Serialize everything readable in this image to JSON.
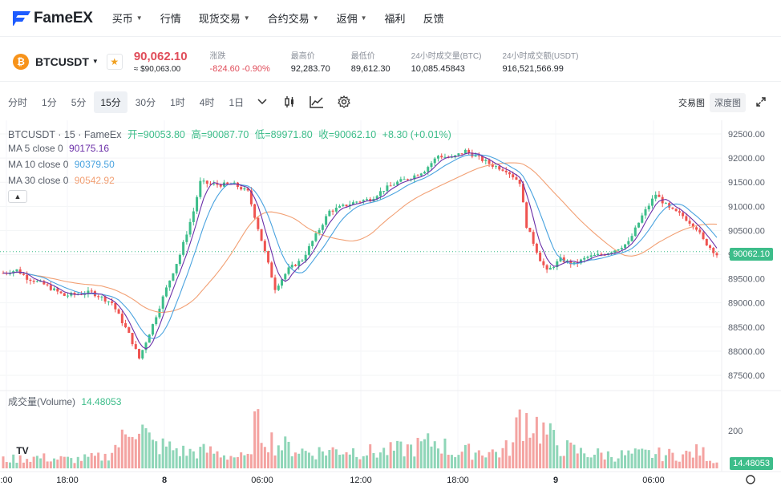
{
  "brand": {
    "name": "FameEX"
  },
  "nav": [
    {
      "label": "买币",
      "dropdown": true
    },
    {
      "label": "行情",
      "dropdown": false
    },
    {
      "label": "现货交易",
      "dropdown": true
    },
    {
      "label": "合约交易",
      "dropdown": true
    },
    {
      "label": "返佣",
      "dropdown": true
    },
    {
      "label": "福利",
      "dropdown": false
    },
    {
      "label": "反馈",
      "dropdown": false
    }
  ],
  "ticker": {
    "coin_icon": "₿",
    "symbol": "BTCUSDT",
    "price": "90,062.10",
    "price_usd": "≈ $90,063.00",
    "change_label": "涨跌",
    "change_value": "-824.60 -0.90%",
    "high_label": "最高价",
    "high_value": "92,283.70",
    "low_label": "最低价",
    "low_value": "89,612.30",
    "vol_btc_label": "24小时成交量(BTC)",
    "vol_btc_value": "10,085.45843",
    "vol_usdt_label": "24小时成交额(USDT)",
    "vol_usdt_value": "916,521,566.99"
  },
  "toolbar": {
    "timeframes": [
      "分时",
      "1分",
      "5分",
      "15分",
      "30分",
      "1时",
      "4时",
      "1日"
    ],
    "active": "15分",
    "views": [
      "交易图",
      "深度图"
    ]
  },
  "legend": {
    "title": "BTCUSDT · 15 · FameEx",
    "open": "开=90053.80",
    "high": "高=90087.70",
    "low": "低=89971.80",
    "close": "收=90062.10",
    "change": "+8.30 (+0.01%)",
    "ma5_label": "MA 5 close 0",
    "ma5_value": "90175.16",
    "ma10_label": "MA 10 close 0",
    "ma10_value": "90379.50",
    "ma30_label": "MA 30 close 0",
    "ma30_value": "90542.92",
    "volume_label": "成交量(Volume)",
    "volume_value": "14.48053"
  },
  "colors": {
    "up": "#3dbd8a",
    "down": "#ef5350",
    "ma5": "#6b2fa8",
    "ma10": "#4aa3df",
    "ma30": "#f2a074",
    "brand": "#1e5cff"
  },
  "chart_data": {
    "type": "candlestick",
    "interval": "15",
    "y_ticks": [
      92500,
      92000,
      91500,
      91000,
      90500,
      90000,
      89500,
      89000,
      88500,
      88000,
      87500
    ],
    "ylim": [
      87300,
      92700
    ],
    "last_price_tag": "90062.10",
    "volume_tick": "200",
    "volume_tag": "14.48053",
    "x_tick_labels": [
      ":00",
      "18:00",
      "8",
      "06:00",
      "12:00",
      "18:00",
      "9",
      "06:00"
    ],
    "anchors": [
      [
        0,
        89620
      ],
      [
        4,
        89680
      ],
      [
        7,
        89520
      ],
      [
        12,
        89380
      ],
      [
        18,
        89150
      ],
      [
        26,
        89220
      ],
      [
        32,
        89000
      ],
      [
        37,
        88350
      ],
      [
        40,
        87850
      ],
      [
        44,
        88550
      ],
      [
        48,
        89300
      ],
      [
        52,
        90000
      ],
      [
        56,
        90900
      ],
      [
        58,
        91500
      ],
      [
        62,
        91450
      ],
      [
        68,
        91450
      ],
      [
        72,
        91300
      ],
      [
        76,
        90300
      ],
      [
        80,
        89300
      ],
      [
        84,
        89700
      ],
      [
        88,
        89900
      ],
      [
        92,
        90400
      ],
      [
        96,
        90900
      ],
      [
        100,
        91000
      ],
      [
        104,
        91100
      ],
      [
        108,
        91150
      ],
      [
        112,
        91350
      ],
      [
        116,
        91500
      ],
      [
        120,
        91600
      ],
      [
        124,
        91750
      ],
      [
        128,
        92050
      ],
      [
        132,
        92000
      ],
      [
        136,
        92150
      ],
      [
        140,
        92000
      ],
      [
        144,
        91850
      ],
      [
        148,
        91750
      ],
      [
        152,
        91500
      ],
      [
        154,
        90600
      ],
      [
        158,
        89900
      ],
      [
        160,
        89650
      ],
      [
        164,
        89900
      ],
      [
        168,
        89800
      ],
      [
        172,
        89950
      ],
      [
        176,
        90000
      ],
      [
        180,
        90100
      ],
      [
        184,
        90250
      ],
      [
        188,
        90800
      ],
      [
        192,
        91250
      ],
      [
        196,
        90950
      ],
      [
        200,
        90800
      ],
      [
        204,
        90550
      ],
      [
        206,
        90300
      ],
      [
        210,
        90000
      ]
    ],
    "volume_anchors": [
      [
        0,
        30
      ],
      [
        10,
        38
      ],
      [
        20,
        30
      ],
      [
        30,
        40
      ],
      [
        36,
        110
      ],
      [
        38,
        165
      ],
      [
        40,
        150
      ],
      [
        44,
        80
      ],
      [
        48,
        75
      ],
      [
        54,
        55
      ],
      [
        60,
        60
      ],
      [
        66,
        45
      ],
      [
        72,
        35
      ],
      [
        74,
        148
      ],
      [
        76,
        130
      ],
      [
        80,
        85
      ],
      [
        90,
        55
      ],
      [
        100,
        65
      ],
      [
        110,
        55
      ],
      [
        120,
        70
      ],
      [
        128,
        95
      ],
      [
        132,
        55
      ],
      [
        140,
        60
      ],
      [
        146,
        55
      ],
      [
        150,
        80
      ],
      [
        152,
        185
      ],
      [
        156,
        160
      ],
      [
        160,
        118
      ],
      [
        164,
        75
      ],
      [
        170,
        55
      ],
      [
        180,
        45
      ],
      [
        190,
        50
      ],
      [
        200,
        45
      ],
      [
        205,
        60
      ],
      [
        210,
        20
      ]
    ]
  }
}
